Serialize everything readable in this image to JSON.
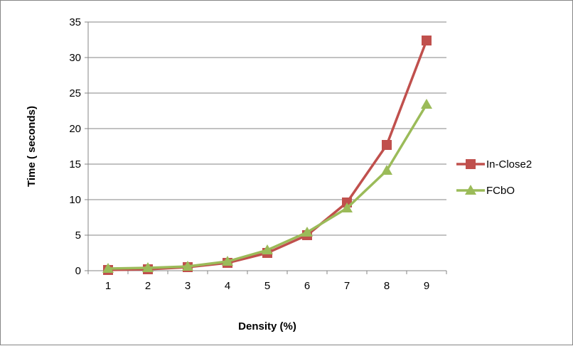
{
  "chart_data": {
    "type": "line",
    "title": "",
    "xlabel": "Density (%)",
    "ylabel": "Time ( seconds)",
    "categories": [
      "1",
      "2",
      "3",
      "4",
      "5",
      "6",
      "7",
      "8",
      "9"
    ],
    "ylim": [
      0,
      35
    ],
    "yticks": [
      0,
      5,
      10,
      15,
      20,
      25,
      30,
      35
    ],
    "grid": true,
    "legend_position": "right",
    "series": [
      {
        "name": "In-Close2",
        "color": "#C0504D",
        "marker": "square",
        "values": [
          0.1,
          0.2,
          0.5,
          1.1,
          2.5,
          5.0,
          9.6,
          17.7,
          32.4
        ]
      },
      {
        "name": "FCbO",
        "color": "#9BBB59",
        "marker": "triangle",
        "values": [
          0.3,
          0.4,
          0.6,
          1.3,
          2.9,
          5.4,
          8.8,
          14.1,
          23.4
        ]
      }
    ]
  }
}
